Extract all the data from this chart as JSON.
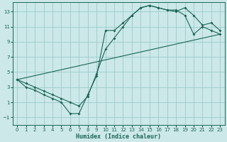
{
  "xlabel": "Humidex (Indice chaleur)",
  "bg_color": "#cce8e8",
  "grid_color": "#99cccc",
  "line_color": "#1a6655",
  "xlim": [
    -0.5,
    23.5
  ],
  "ylim": [
    -2.0,
    14.2
  ],
  "xticks": [
    0,
    1,
    2,
    3,
    4,
    5,
    6,
    7,
    8,
    9,
    10,
    11,
    12,
    13,
    14,
    15,
    16,
    17,
    18,
    19,
    20,
    21,
    22,
    23
  ],
  "yticks": [
    -1,
    1,
    3,
    5,
    7,
    9,
    11,
    13
  ],
  "s1x": [
    0,
    1,
    2,
    3,
    4,
    5,
    6,
    7,
    8,
    9,
    10,
    11,
    12,
    13,
    14,
    15,
    16,
    17,
    18,
    19,
    20,
    21,
    22,
    23
  ],
  "s1y": [
    4.0,
    3.0,
    2.6,
    2.0,
    1.5,
    1.0,
    -0.5,
    -0.5,
    2.0,
    4.5,
    10.5,
    10.5,
    11.5,
    12.5,
    13.5,
    13.8,
    13.5,
    13.2,
    13.2,
    12.5,
    10.0,
    11.0,
    10.5,
    10.0
  ],
  "s2x": [
    0,
    1,
    2,
    3,
    4,
    5,
    6,
    7,
    8,
    9,
    10,
    11,
    12,
    13,
    14,
    15,
    16,
    17,
    18,
    19,
    20,
    21,
    22,
    23
  ],
  "s2y": [
    4.0,
    3.5,
    3.0,
    2.5,
    2.0,
    1.5,
    1.0,
    0.5,
    1.8,
    4.8,
    8.0,
    9.5,
    11.0,
    12.5,
    13.5,
    13.8,
    13.5,
    13.2,
    13.0,
    13.5,
    12.5,
    11.2,
    11.5,
    10.5
  ],
  "s3x": [
    0,
    23
  ],
  "s3y": [
    4.0,
    10.0
  ]
}
